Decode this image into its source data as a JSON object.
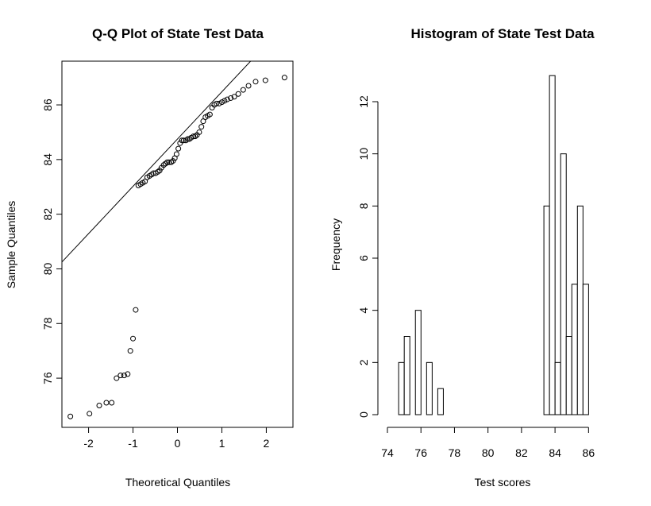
{
  "chart_data": [
    {
      "type": "scatter",
      "title": "Q-Q Plot of State Test Data",
      "xlabel": "Theoretical Quantiles",
      "ylabel": "Sample Quantiles",
      "xlim": [
        -2.6,
        2.6
      ],
      "ylim": [
        74.2,
        87.6
      ],
      "xticks": [
        -2,
        -1,
        0,
        1,
        2
      ],
      "xtick_labels": [
        "-2",
        "-1",
        "0",
        "1",
        "2"
      ],
      "yticks": [
        76,
        78,
        80,
        82,
        84,
        86
      ],
      "ytick_labels": [
        "76",
        "78",
        "80",
        "82",
        "84",
        "86"
      ],
      "grid": false,
      "legend": "none",
      "reference_line": {
        "intercept": 84.75,
        "slope": 1.73
      },
      "points": [
        [
          -2.41,
          74.6
        ],
        [
          -1.98,
          74.7
        ],
        [
          -1.76,
          75.0
        ],
        [
          -1.6,
          75.1
        ],
        [
          -1.48,
          75.1
        ],
        [
          -1.37,
          76.0
        ],
        [
          -1.28,
          76.1
        ],
        [
          -1.2,
          76.1
        ],
        [
          -1.12,
          76.15
        ],
        [
          -1.06,
          77.0
        ],
        [
          -1.0,
          77.45
        ],
        [
          -0.94,
          78.5
        ],
        [
          -0.88,
          83.05
        ],
        [
          -0.83,
          83.1
        ],
        [
          -0.78,
          83.15
        ],
        [
          -0.73,
          83.2
        ],
        [
          -0.68,
          83.35
        ],
        [
          -0.63,
          83.4
        ],
        [
          -0.58,
          83.45
        ],
        [
          -0.54,
          83.5
        ],
        [
          -0.49,
          83.5
        ],
        [
          -0.44,
          83.55
        ],
        [
          -0.4,
          83.6
        ],
        [
          -0.36,
          83.7
        ],
        [
          -0.31,
          83.8
        ],
        [
          -0.27,
          83.85
        ],
        [
          -0.23,
          83.9
        ],
        [
          -0.19,
          83.9
        ],
        [
          -0.14,
          83.9
        ],
        [
          -0.1,
          83.95
        ],
        [
          -0.06,
          84.05
        ],
        [
          -0.02,
          84.2
        ],
        [
          0.02,
          84.4
        ],
        [
          0.06,
          84.6
        ],
        [
          0.1,
          84.7
        ],
        [
          0.14,
          84.7
        ],
        [
          0.19,
          84.7
        ],
        [
          0.23,
          84.75
        ],
        [
          0.27,
          84.75
        ],
        [
          0.31,
          84.8
        ],
        [
          0.36,
          84.85
        ],
        [
          0.4,
          84.85
        ],
        [
          0.44,
          84.9
        ],
        [
          0.49,
          85.0
        ],
        [
          0.54,
          85.2
        ],
        [
          0.58,
          85.4
        ],
        [
          0.63,
          85.55
        ],
        [
          0.68,
          85.6
        ],
        [
          0.73,
          85.65
        ],
        [
          0.78,
          85.9
        ],
        [
          0.83,
          86.0
        ],
        [
          0.88,
          86.05
        ],
        [
          0.94,
          86.05
        ],
        [
          1.0,
          86.1
        ],
        [
          1.06,
          86.15
        ],
        [
          1.12,
          86.2
        ],
        [
          1.2,
          86.25
        ],
        [
          1.28,
          86.3
        ],
        [
          1.37,
          86.4
        ],
        [
          1.48,
          86.55
        ],
        [
          1.6,
          86.7
        ],
        [
          1.76,
          86.85
        ],
        [
          1.98,
          86.9
        ],
        [
          2.41,
          87.0
        ]
      ]
    },
    {
      "type": "bar",
      "title": "Histogram of State Test Data",
      "xlabel": "Test scores",
      "ylabel": "Frequency",
      "xlim": [
        74,
        87.5
      ],
      "ylim": [
        0,
        13.5
      ],
      "xticks": [
        74,
        76,
        78,
        80,
        82,
        84,
        86
      ],
      "xtick_labels": [
        "74",
        "76",
        "78",
        "80",
        "82",
        "84",
        "86"
      ],
      "yticks": [
        0,
        2,
        4,
        6,
        8,
        10,
        12
      ],
      "ytick_labels": [
        "0",
        "2",
        "4",
        "6",
        "8",
        "10",
        "12"
      ],
      "grid": false,
      "legend": "none",
      "bin_width": 0.3333,
      "bin_start": 74.67,
      "values": [
        2,
        3,
        0,
        4,
        0,
        2,
        0,
        1,
        0,
        0,
        0,
        0,
        0,
        0,
        0,
        0,
        0,
        0,
        0,
        0,
        0,
        0,
        0,
        0,
        0,
        0,
        8,
        13,
        2,
        10,
        3,
        5,
        8,
        5
      ]
    }
  ]
}
